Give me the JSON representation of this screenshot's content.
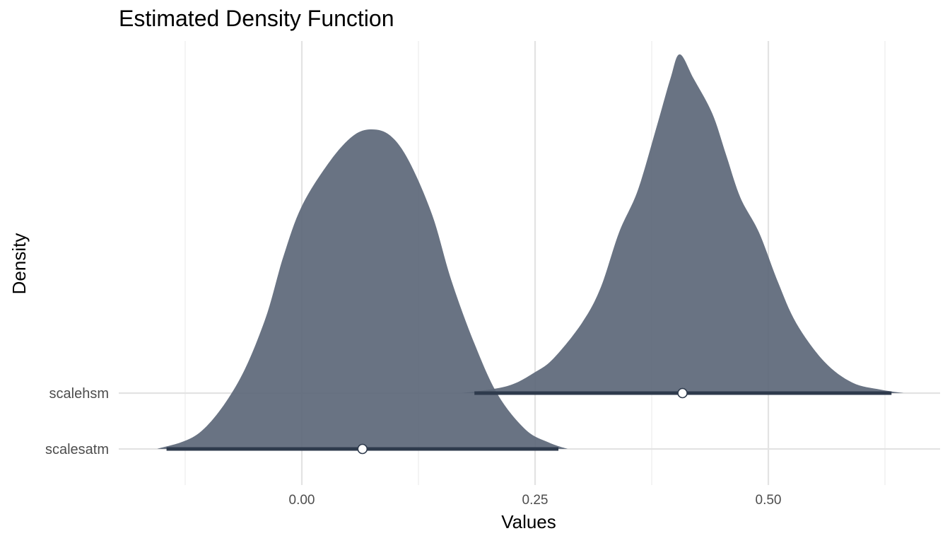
{
  "chart_data": {
    "type": "density_ridges",
    "title": "Estimated Density Function",
    "xlabel": "Values",
    "ylabel": "Density",
    "x_range": [
      -0.185,
      0.685
    ],
    "x_ticks": [
      0.0,
      0.25,
      0.5
    ],
    "x_tick_labels": [
      "0.00",
      "0.25",
      "0.50"
    ],
    "fill_color": "#5c6778",
    "interval_color": "#2e3a4c",
    "grid": true,
    "series": [
      {
        "name": "scalesatm",
        "median": 0.065,
        "interval": [
          -0.145,
          0.275
        ],
        "density": [
          [
            -0.155,
            0.0
          ],
          [
            -0.11,
            0.05
          ],
          [
            -0.07,
            0.2
          ],
          [
            -0.04,
            0.4
          ],
          [
            -0.02,
            0.6
          ],
          [
            0.0,
            0.76
          ],
          [
            0.03,
            0.9
          ],
          [
            0.055,
            0.98
          ],
          [
            0.075,
            1.0
          ],
          [
            0.095,
            0.98
          ],
          [
            0.115,
            0.9
          ],
          [
            0.14,
            0.73
          ],
          [
            0.16,
            0.53
          ],
          [
            0.185,
            0.33
          ],
          [
            0.21,
            0.17
          ],
          [
            0.24,
            0.06
          ],
          [
            0.265,
            0.02
          ],
          [
            0.285,
            0.0
          ]
        ]
      },
      {
        "name": "scalehsm",
        "median": 0.408,
        "interval": [
          0.185,
          0.632
        ],
        "density": [
          [
            0.172,
            0.0
          ],
          [
            0.22,
            0.02
          ],
          [
            0.25,
            0.06
          ],
          [
            0.27,
            0.1
          ],
          [
            0.3,
            0.2
          ],
          [
            0.32,
            0.3
          ],
          [
            0.34,
            0.46
          ],
          [
            0.36,
            0.58
          ],
          [
            0.38,
            0.76
          ],
          [
            0.395,
            0.9
          ],
          [
            0.405,
            0.97
          ],
          [
            0.42,
            0.9
          ],
          [
            0.44,
            0.8
          ],
          [
            0.455,
            0.68
          ],
          [
            0.47,
            0.56
          ],
          [
            0.49,
            0.46
          ],
          [
            0.51,
            0.32
          ],
          [
            0.53,
            0.2
          ],
          [
            0.56,
            0.09
          ],
          [
            0.59,
            0.03
          ],
          [
            0.62,
            0.01
          ],
          [
            0.645,
            0.0
          ]
        ]
      }
    ]
  }
}
